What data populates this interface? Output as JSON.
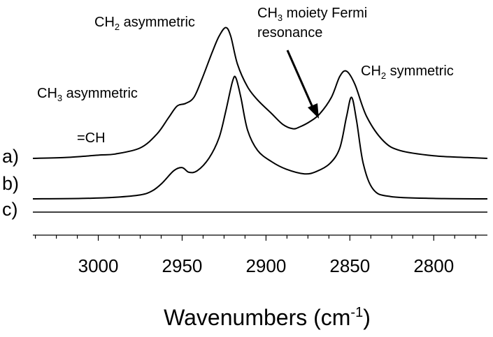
{
  "chart_data": {
    "type": "line",
    "title": "",
    "xlabel": "Wavenumbers",
    "xlabel_unit_prefix": "(cm",
    "xlabel_unit_exp": "-1",
    "xlabel_unit_suffix": ")",
    "ylabel": "",
    "xlim": [
      3039,
      2768
    ],
    "x_reversed": true,
    "x_ticks": [
      3000,
      2950,
      2900,
      2850,
      2800
    ],
    "x_tick_labels": [
      "3000",
      "2950",
      "2900",
      "2850",
      "2800"
    ],
    "grid": false,
    "legend": "none",
    "series_labels": [
      "a)",
      "b)",
      "c)"
    ],
    "series": [
      {
        "label": "a)",
        "color": "#000000",
        "points": [
          [
            3039,
            0.0
          ],
          [
            3020,
            0.01
          ],
          [
            3005,
            0.03
          ],
          [
            2998,
            0.04
          ],
          [
            2990,
            0.05
          ],
          [
            2975,
            0.12
          ],
          [
            2965,
            0.28
          ],
          [
            2958,
            0.47
          ],
          [
            2953,
            0.6
          ],
          [
            2948,
            0.63
          ],
          [
            2943,
            0.7
          ],
          [
            2938,
            0.92
          ],
          [
            2932,
            1.22
          ],
          [
            2928,
            1.4
          ],
          [
            2924,
            1.5
          ],
          [
            2921,
            1.4
          ],
          [
            2917,
            1.08
          ],
          [
            2911,
            0.82
          ],
          [
            2905,
            0.67
          ],
          [
            2897,
            0.52
          ],
          [
            2890,
            0.39
          ],
          [
            2884,
            0.34
          ],
          [
            2880,
            0.36
          ],
          [
            2874,
            0.42
          ],
          [
            2868,
            0.51
          ],
          [
            2861,
            0.7
          ],
          [
            2856,
            0.94
          ],
          [
            2852,
            1.0
          ],
          [
            2847,
            0.85
          ],
          [
            2840,
            0.48
          ],
          [
            2830,
            0.2
          ],
          [
            2820,
            0.09
          ],
          [
            2800,
            0.03
          ],
          [
            2780,
            0.01
          ],
          [
            2768,
            0.0
          ]
        ]
      },
      {
        "label": "b)",
        "color": "#000000",
        "points": [
          [
            3039,
            0.0
          ],
          [
            3010,
            0.005
          ],
          [
            2990,
            0.02
          ],
          [
            2975,
            0.05
          ],
          [
            2968,
            0.1
          ],
          [
            2962,
            0.2
          ],
          [
            2955,
            0.36
          ],
          [
            2950,
            0.4
          ],
          [
            2946,
            0.34
          ],
          [
            2941,
            0.36
          ],
          [
            2934,
            0.52
          ],
          [
            2928,
            0.78
          ],
          [
            2924,
            1.12
          ],
          [
            2920,
            1.5
          ],
          [
            2918,
            1.55
          ],
          [
            2915,
            1.3
          ],
          [
            2911,
            0.88
          ],
          [
            2905,
            0.62
          ],
          [
            2897,
            0.48
          ],
          [
            2888,
            0.38
          ],
          [
            2877,
            0.32
          ],
          [
            2870,
            0.35
          ],
          [
            2862,
            0.45
          ],
          [
            2856,
            0.65
          ],
          [
            2852,
            1.05
          ],
          [
            2849,
            1.3
          ],
          [
            2846,
            1.0
          ],
          [
            2842,
            0.45
          ],
          [
            2836,
            0.12
          ],
          [
            2826,
            0.03
          ],
          [
            2800,
            0.005
          ],
          [
            2768,
            0.0
          ]
        ]
      },
      {
        "label": "c)",
        "color": "#000000",
        "points": [
          [
            3039,
            0.0
          ],
          [
            2768,
            0.0
          ]
        ]
      }
    ],
    "annotations": {
      "ch2_asym": {
        "main": "CH",
        "sub": "2",
        "rest": " asymmetric"
      },
      "ch3_moiety_line1": {
        "main": "CH",
        "sub": "3",
        "rest": " moiety Fermi"
      },
      "ch3_moiety_line2": "resonance",
      "ch2_sym": {
        "main": "CH",
        "sub": "2",
        "rest": " symmetric"
      },
      "ch3_asym": {
        "main": "CH",
        "sub": "3",
        "rest": " asymmetric"
      },
      "eq_ch": "=CH"
    }
  }
}
